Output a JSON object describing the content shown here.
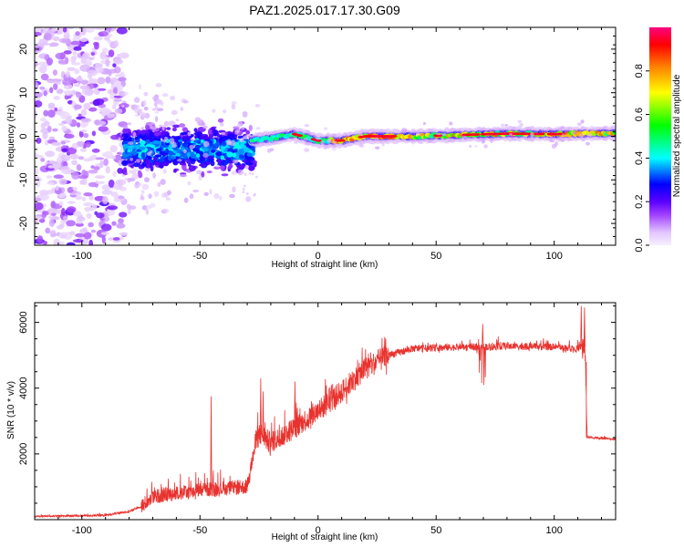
{
  "title": "PAZ1.2025.017.17.30.G09",
  "chart_data": [
    {
      "type": "heatmap",
      "xlabel": "Height of straight line (km)",
      "ylabel": "Frequency (Hz)",
      "xlim": [
        -120,
        126
      ],
      "ylim": [
        -25,
        25
      ],
      "xticks": [
        -100,
        -50,
        0,
        50,
        100
      ],
      "yticks": [
        -20,
        -10,
        0,
        10,
        20
      ],
      "ytick_labels": [
        "-20",
        "-10",
        "0",
        "10",
        "20"
      ],
      "colorbar": {
        "label": "Normalized spectral amplitude",
        "range": [
          0,
          1
        ],
        "ticks": [
          0.0,
          0.2,
          0.4,
          0.6,
          0.8
        ],
        "tick_labels": [
          "0.0",
          "0.2",
          "0.4",
          "0.6",
          "0.8"
        ],
        "colors": [
          "#f7f0ff",
          "#e2c4ff",
          "#a040ff",
          "#5a00ff",
          "#0000ff",
          "#00ffff",
          "#00ff00",
          "#ffff00",
          "#ff8000",
          "#ff0000",
          "#ff0080"
        ]
      },
      "ridge": {
        "description_free": true,
        "x": [
          -120,
          -80,
          -60,
          -40,
          -28,
          -20,
          -10,
          0,
          10,
          20,
          40,
          60,
          80,
          100,
          126
        ],
        "freq": [
          -3,
          -3,
          -3,
          -3,
          -1,
          -0.5,
          0.5,
          -1,
          -1,
          0,
          0,
          0.3,
          0.6,
          0.5,
          0.7
        ]
      }
    },
    {
      "type": "line",
      "xlabel": "Height of straight line (km)",
      "ylabel": "SNR (10 * v/v)",
      "xlim": [
        -120,
        126
      ],
      "ylim": [
        0,
        6600
      ],
      "xticks": [
        -100,
        -50,
        0,
        50,
        100
      ],
      "yticks": [
        2000,
        4000,
        6000
      ],
      "ytick_labels": [
        "2000",
        "4000",
        "6000"
      ],
      "color": "#e8322e",
      "envelope": {
        "x": [
          -120,
          -90,
          -80,
          -75,
          -70,
          -60,
          -50,
          -40,
          -30,
          -26,
          -24,
          -20,
          -10,
          0,
          10,
          20,
          30,
          35,
          40,
          60,
          70,
          80,
          100,
          110,
          112,
          113,
          114,
          126
        ],
        "y": [
          100,
          130,
          250,
          400,
          700,
          800,
          900,
          950,
          1000,
          2500,
          2600,
          2300,
          2800,
          3300,
          3900,
          4600,
          5000,
          5100,
          5200,
          5250,
          5250,
          5280,
          5250,
          5200,
          5300,
          5250,
          2500,
          2450
        ]
      }
    }
  ]
}
